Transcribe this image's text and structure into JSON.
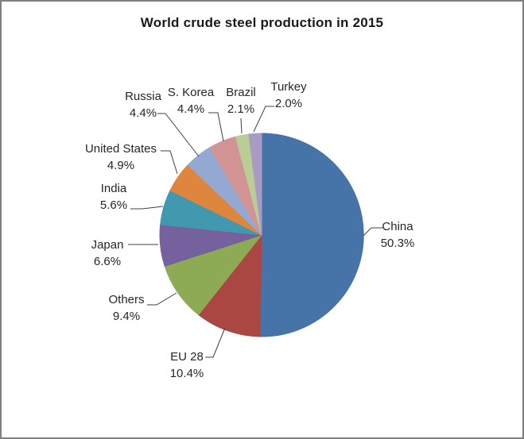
{
  "frame": {
    "background": "#ffffff",
    "border_color": "#7f7f7f"
  },
  "chart_data": {
    "type": "pie",
    "title": "World crude steel production in 2015",
    "legend_position": "none",
    "start_angle_deg": 0,
    "direction": "clockwise",
    "text_color": "#262626",
    "leader_line_color": "#404040",
    "slices": [
      {
        "label": "China",
        "value": 50.3,
        "pct_label": "50.3%",
        "color": "#4673a8"
      },
      {
        "label": "EU 28",
        "value": 10.4,
        "pct_label": "10.4%",
        "color": "#aa4743"
      },
      {
        "label": "Others",
        "value": 9.4,
        "pct_label": "9.4%",
        "color": "#8dab55"
      },
      {
        "label": "Japan",
        "value": 6.6,
        "pct_label": "6.6%",
        "color": "#75619e"
      },
      {
        "label": "India",
        "value": 5.6,
        "pct_label": "5.6%",
        "color": "#4198af"
      },
      {
        "label": "United States",
        "value": 4.9,
        "pct_label": "4.9%",
        "color": "#de853e"
      },
      {
        "label": "Russia",
        "value": 4.4,
        "pct_label": "4.4%",
        "color": "#93a9d2"
      },
      {
        "label": "S. Korea",
        "value": 4.4,
        "pct_label": "4.4%",
        "color": "#d19394"
      },
      {
        "label": "Brazil",
        "value": 2.1,
        "pct_label": "2.1%",
        "color": "#bacd96"
      },
      {
        "label": "Turkey",
        "value": 2.0,
        "pct_label": "2.0%",
        "color": "#a99cc4"
      }
    ]
  }
}
